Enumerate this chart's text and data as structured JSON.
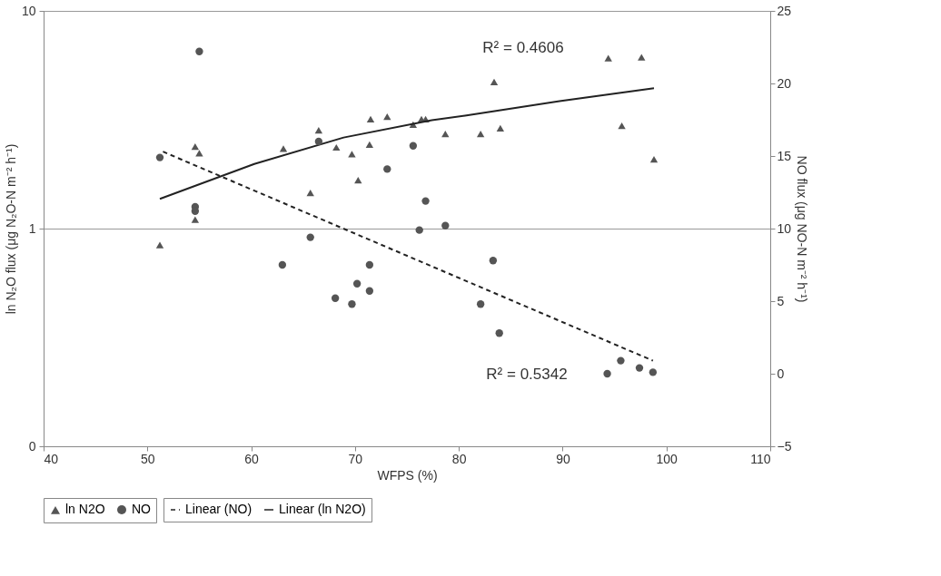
{
  "chart_data": {
    "type": "scatter",
    "xlabel": "WFPS (%)",
    "ylabel": "ln N₂O flux (μg N₂O-N m⁻² h⁻¹)",
    "y2label": "NO flux (μg NO-N m⁻² h⁻¹)",
    "xlim": [
      40,
      110
    ],
    "xticks": [
      40,
      50,
      60,
      70,
      80,
      90,
      100,
      110
    ],
    "ylim": [
      0.1,
      10
    ],
    "yticks": [
      {
        "value": 0.1,
        "label": "0"
      },
      1,
      10
    ],
    "log": "y",
    "y2lim": [
      -5,
      25
    ],
    "y2ticks": [
      -5,
      0,
      5,
      10,
      15,
      20,
      25
    ],
    "grid": "y",
    "legend": "bottom",
    "series": [
      {
        "name": "ln N2O",
        "marker": "triangle",
        "color": "#555555",
        "axis": "y",
        "x": [
          51.2,
          54.6,
          54.6,
          55.0,
          63.1,
          65.7,
          66.5,
          68.2,
          69.7,
          70.3,
          71.4,
          71.5,
          73.1,
          75.6,
          76.4,
          76.8,
          78.7,
          82.1,
          83.4,
          84.0,
          94.4,
          97.6,
          95.7,
          98.8
        ],
        "values": [
          0.84,
          1.1,
          2.38,
          2.22,
          2.33,
          1.46,
          2.83,
          2.36,
          2.2,
          1.67,
          2.43,
          3.18,
          3.27,
          3.0,
          3.18,
          3.18,
          2.72,
          2.72,
          4.72,
          2.89,
          6.06,
          6.12,
          2.97,
          2.08
        ]
      },
      {
        "name": "NO",
        "marker": "circle",
        "color": "#555555",
        "axis": "y2",
        "x": [
          55.0,
          51.2,
          54.6,
          54.6,
          66.5,
          75.6,
          73.1,
          76.8,
          78.7,
          76.2,
          65.7,
          63.0,
          71.4,
          70.2,
          71.4,
          68.1,
          69.7,
          82.1,
          83.3,
          83.9,
          94.3,
          95.6,
          97.4,
          98.7
        ],
        "values": [
          22.2,
          14.9,
          11.5,
          11.2,
          16.0,
          15.7,
          14.1,
          11.9,
          10.2,
          9.9,
          9.4,
          7.5,
          7.5,
          6.2,
          5.7,
          5.2,
          4.8,
          4.8,
          7.8,
          2.8,
          0.0,
          0.9,
          0.4,
          0.1
        ]
      },
      {
        "name": "Linear (NO)",
        "type": "line",
        "line_style": "dashed",
        "color": "#222222",
        "axis": "y2",
        "x": [
          51.5,
          98.7
        ],
        "values": [
          15.3,
          0.9
        ]
      },
      {
        "name": "Linear (ln N2O)",
        "type": "line",
        "line_style": "solid",
        "color": "#222222",
        "axis": "y",
        "x": [
          51.2,
          60.3,
          68.9,
          77.4,
          80.6,
          89.7,
          98.8
        ],
        "values": [
          1.37,
          1.98,
          2.62,
          3.15,
          3.3,
          3.85,
          4.41
        ]
      }
    ],
    "annotations": [
      "R² = 0.4606",
      "R² = 0.5342"
    ]
  }
}
